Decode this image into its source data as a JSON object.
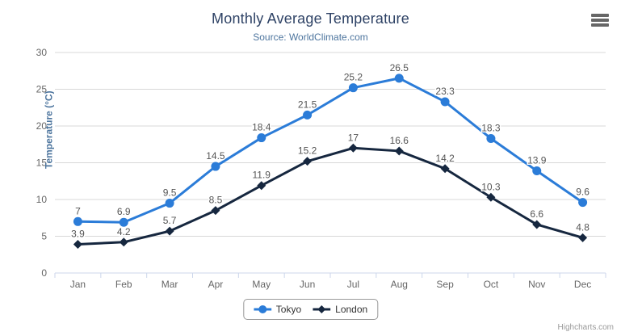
{
  "chart_data": {
    "type": "line",
    "title": "Monthly Average Temperature",
    "subtitle": "Source: WorldClimate.com",
    "categories": [
      "Jan",
      "Feb",
      "Mar",
      "Apr",
      "May",
      "Jun",
      "Jul",
      "Aug",
      "Sep",
      "Oct",
      "Nov",
      "Dec"
    ],
    "xlabel": "",
    "ylabel": "Temperature (°C)",
    "ylim": [
      0,
      30
    ],
    "ytick_step": 5,
    "grid": true,
    "legend_position": "bottom-center",
    "series": [
      {
        "name": "Tokyo",
        "color": "#2b7cd8",
        "marker": "circle",
        "values": [
          7,
          6.9,
          9.5,
          14.5,
          18.4,
          21.5,
          25.2,
          26.5,
          23.3,
          18.3,
          13.9,
          9.6
        ]
      },
      {
        "name": "London",
        "color": "#16273f",
        "marker": "diamond",
        "values": [
          3.9,
          4.2,
          5.7,
          8.5,
          11.9,
          15.2,
          17,
          16.6,
          14.2,
          10.3,
          6.6,
          4.8
        ]
      }
    ]
  },
  "colors": {
    "title": "#2e4265",
    "subtitle": "#4d759e",
    "axis_title": "#4d759e",
    "axis_labels": "#666666",
    "grid_line": "#d8d8d8",
    "axis_line": "#ccd6eb",
    "data_labels": "#555555",
    "legend_text": "#333333",
    "credits": "#999999",
    "export_icon": "#666666"
  },
  "icons": {
    "export_menu": "hamburger-icon"
  },
  "credits": {
    "label": "Highcharts.com"
  }
}
